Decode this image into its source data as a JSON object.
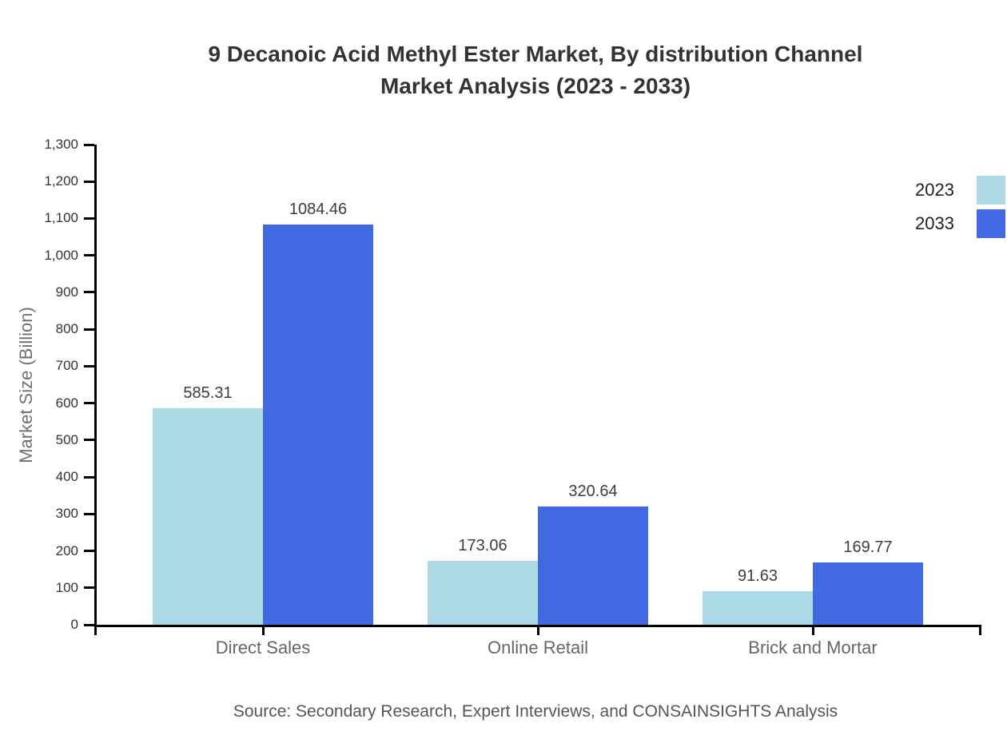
{
  "title": {
    "line1": "9 Decanoic Acid Methyl Ester Market, By distribution Channel",
    "line2": "Market Analysis (2023 - 2033)"
  },
  "colors": {
    "series_2023": "#ADD8E6",
    "series_2033": "#4169E1",
    "axis": "#000000",
    "title_text": "#333333",
    "tick_label": "#333333",
    "category_label": "#666666",
    "value_label": "#3d3d3d",
    "axis_title_text": "#707070",
    "source_text": "#555555",
    "background": "#ffffff"
  },
  "chart_data": {
    "type": "bar",
    "title": "9 Decanoic Acid Methyl Ester Market, By distribution Channel Market Analysis (2023 - 2033)",
    "categories": [
      "Direct Sales",
      "Online Retail",
      "Brick and Mortar"
    ],
    "series": [
      {
        "name": "2023",
        "color": "#ADD8E6",
        "values": [
          585.31,
          173.06,
          91.63
        ]
      },
      {
        "name": "2033",
        "color": "#4169E1",
        "values": [
          1084.46,
          320.64,
          169.77
        ]
      }
    ],
    "value_labels": [
      "585.31",
      "1084.46",
      "173.06",
      "320.64",
      "91.63",
      "169.77"
    ],
    "xlabel": "",
    "ylabel": "Market Size (Billion)",
    "ylim": [
      0,
      1300
    ],
    "ytick_step": 100,
    "ytick_labels": [
      "0",
      "100",
      "200",
      "300",
      "400",
      "500",
      "600",
      "700",
      "800",
      "900",
      "1,000",
      "1,100",
      "1,200",
      "1,300"
    ],
    "grid": false,
    "legend_position": "top-right",
    "source": "Source: Secondary Research, Expert Interviews, and CONSAINSIGHTS Analysis"
  }
}
